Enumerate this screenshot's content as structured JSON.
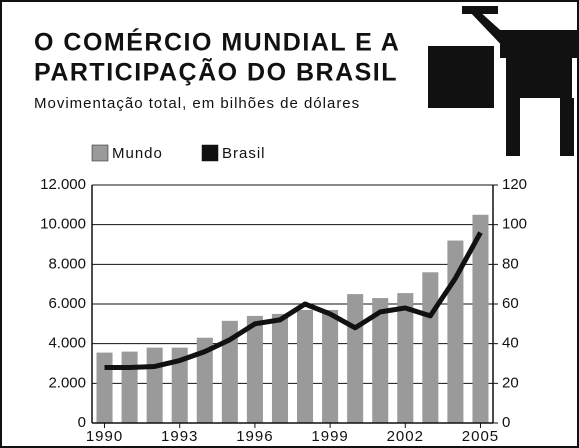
{
  "chart_data": {
    "type": "bar_line",
    "title": [
      "O COMÉRCIO MUNDIAL E A",
      "PARTICIPAÇÃO DO BRASIL"
    ],
    "subtitle": "Movimentação total, em bilhões de dólares",
    "categories": [
      "1990",
      null,
      null,
      "1993",
      null,
      null,
      "1996",
      null,
      null,
      "1999",
      null,
      null,
      "2002",
      null,
      null,
      "2005"
    ],
    "series": [
      {
        "name": "Mundo",
        "color": "#9a9a9a",
        "values": [
          3550,
          3600,
          3800,
          3800,
          4300,
          5150,
          5400,
          5500,
          5700,
          5700,
          6500,
          6300,
          6550,
          7600,
          9200,
          10500
        ]
      },
      {
        "name": "Brasil",
        "color": "#111111",
        "axis": "y2",
        "values": [
          28,
          28,
          28.5,
          31.5,
          36,
          42,
          50,
          52,
          60,
          55,
          48,
          56,
          58,
          54,
          73,
          96
        ]
      }
    ],
    "ylim": [
      0,
      12000
    ],
    "yticks": [
      0,
      {
        "value": 2000,
        "label": "2.000"
      },
      {
        "value": 4000,
        "label": "4.000"
      },
      {
        "value": 6000,
        "label": "6.000"
      },
      {
        "value": 8000,
        "label": "8.000"
      },
      {
        "value": 10000,
        "label": "10.000"
      },
      {
        "value": 12000,
        "label": "12.000"
      }
    ],
    "y2lim": [
      0,
      120
    ],
    "y2ticks": [
      0,
      20,
      40,
      60,
      80,
      100,
      120
    ],
    "grid": true
  }
}
